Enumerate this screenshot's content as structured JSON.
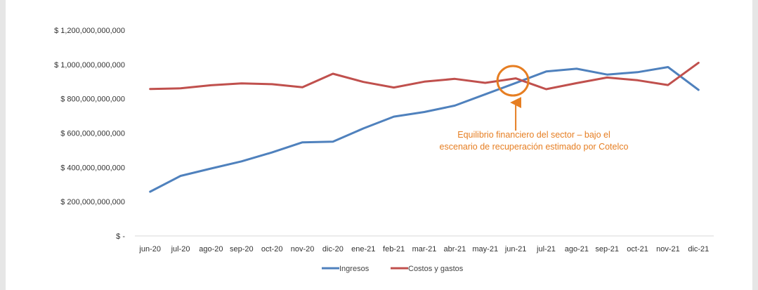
{
  "chart_data": {
    "type": "line",
    "categories": [
      "jun-20",
      "jul-20",
      "ago-20",
      "sep-20",
      "oct-20",
      "nov-20",
      "dic-20",
      "ene-21",
      "feb-21",
      "mar-21",
      "abr-21",
      "may-21",
      "jun-21",
      "jul-21",
      "ago-21",
      "sep-21",
      "oct-21",
      "nov-21",
      "dic-21"
    ],
    "series": [
      {
        "name": "Ingresos",
        "color": "#4f81bd",
        "values": [
          258000000000,
          350000000000,
          393000000000,
          435000000000,
          487000000000,
          546000000000,
          550000000000,
          627000000000,
          696000000000,
          723000000000,
          760000000000,
          826000000000,
          892000000000,
          959000000000,
          975000000000,
          941000000000,
          955000000000,
          985000000000,
          852000000000
        ]
      },
      {
        "name": "Costos y gastos",
        "color": "#c0504d",
        "values": [
          857000000000,
          861000000000,
          879000000000,
          890000000000,
          885000000000,
          867000000000,
          946000000000,
          898000000000,
          866000000000,
          900000000000,
          916000000000,
          893000000000,
          919000000000,
          856000000000,
          891000000000,
          924000000000,
          908000000000,
          880000000000,
          1010000000000
        ]
      }
    ],
    "yticks": [
      "$ -",
      "$ 200,000,000,000",
      "$ 400,000,000,000",
      "$ 600,000,000,000",
      "$ 800,000,000,000",
      "$ 1,000,000,000,000",
      "$ 1,200,000,000,000"
    ],
    "ylim": [
      0,
      1200000000000
    ],
    "grid": false,
    "legend_position": "bottom",
    "annotation": {
      "line1": "Equilibrio financiero del sector – bajo el",
      "line2": "escenario de recuperación estimado por Cotelco",
      "color": "#e67e22",
      "points_to_category": "jun-21",
      "marked_value": 905000000000
    }
  }
}
